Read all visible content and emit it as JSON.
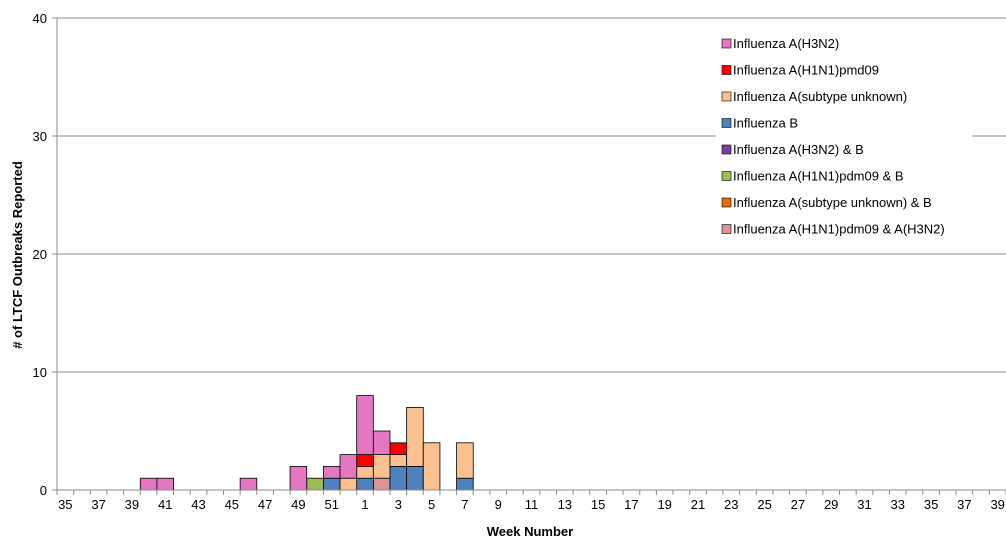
{
  "chart_data": {
    "type": "bar",
    "stacked": true,
    "xlabel": "Week Number",
    "ylabel": "# of LTCF Outbreaks Reported",
    "ylim": [
      0,
      40
    ],
    "yticks": [
      0,
      10,
      20,
      30,
      40
    ],
    "grid": true,
    "legend_position": "top-right",
    "categories": [
      "35",
      "36",
      "37",
      "38",
      "39",
      "40",
      "41",
      "42",
      "43",
      "44",
      "45",
      "46",
      "47",
      "48",
      "49",
      "50",
      "51",
      "52",
      "1",
      "2",
      "3",
      "4",
      "5",
      "6",
      "7",
      "8",
      "9",
      "10",
      "11",
      "12",
      "13",
      "14",
      "15",
      "16",
      "17",
      "18",
      "19",
      "20",
      "21",
      "22",
      "23",
      "24",
      "25",
      "26",
      "27",
      "28",
      "29",
      "30",
      "31",
      "32",
      "33",
      "34",
      "35",
      "36",
      "37",
      "38",
      "39"
    ],
    "tick_labels_shown": [
      "35",
      "37",
      "39",
      "41",
      "43",
      "45",
      "47",
      "49",
      "51",
      "1",
      "3",
      "5",
      "7",
      "9",
      "11",
      "13",
      "15",
      "17",
      "19",
      "21",
      "23",
      "25",
      "27",
      "29",
      "31",
      "33",
      "35",
      "37",
      "39"
    ],
    "series": [
      {
        "name": "Influenza A(H1N1)pdm09 & A(H3N2)",
        "color": "#d99694",
        "values": [
          0,
          0,
          0,
          0,
          0,
          0,
          0,
          0,
          0,
          0,
          0,
          0,
          0,
          0,
          0,
          0,
          0,
          0,
          0,
          1,
          0,
          0,
          0,
          0,
          0,
          0,
          0,
          0,
          0,
          0,
          0,
          0,
          0,
          0,
          0,
          0,
          0,
          0,
          0,
          0,
          0,
          0,
          0,
          0,
          0,
          0,
          0,
          0,
          0,
          0,
          0,
          0,
          0,
          0,
          0,
          0,
          0
        ]
      },
      {
        "name": "Influenza A(H1N1)pdm09 & B",
        "color": "#9bbb59",
        "values": [
          0,
          0,
          0,
          0,
          0,
          0,
          0,
          0,
          0,
          0,
          0,
          0,
          0,
          0,
          0,
          1,
          0,
          0,
          0,
          0,
          0,
          0,
          0,
          0,
          0,
          0,
          0,
          0,
          0,
          0,
          0,
          0,
          0,
          0,
          0,
          0,
          0,
          0,
          0,
          0,
          0,
          0,
          0,
          0,
          0,
          0,
          0,
          0,
          0,
          0,
          0,
          0,
          0,
          0,
          0,
          0,
          0
        ]
      },
      {
        "name": "Influenza A(subtype unknown) & B",
        "color": "#e46c0a",
        "values": [
          0,
          0,
          0,
          0,
          0,
          0,
          0,
          0,
          0,
          0,
          0,
          0,
          0,
          0,
          0,
          0,
          0,
          0,
          0,
          0,
          0,
          0,
          0,
          0,
          0,
          0,
          0,
          0,
          0,
          0,
          0,
          0,
          0,
          0,
          0,
          0,
          0,
          0,
          0,
          0,
          0,
          0,
          0,
          0,
          0,
          0,
          0,
          0,
          0,
          0,
          0,
          0,
          0,
          0,
          0,
          0,
          0
        ]
      },
      {
        "name": "Influenza A(H3N2) & B",
        "color": "#7f3f98",
        "values": [
          0,
          0,
          0,
          0,
          0,
          0,
          0,
          0,
          0,
          0,
          0,
          0,
          0,
          0,
          0,
          0,
          0,
          0,
          0,
          0,
          0,
          0,
          0,
          0,
          0,
          0,
          0,
          0,
          0,
          0,
          0,
          0,
          0,
          0,
          0,
          0,
          0,
          0,
          0,
          0,
          0,
          0,
          0,
          0,
          0,
          0,
          0,
          0,
          0,
          0,
          0,
          0,
          0,
          0,
          0,
          0,
          0
        ]
      },
      {
        "name": "Influenza B",
        "color": "#4f81bd",
        "values": [
          0,
          0,
          0,
          0,
          0,
          0,
          0,
          0,
          0,
          0,
          0,
          0,
          0,
          0,
          0,
          0,
          1,
          0,
          1,
          0,
          2,
          2,
          0,
          0,
          1,
          0,
          0,
          0,
          0,
          0,
          0,
          0,
          0,
          0,
          0,
          0,
          0,
          0,
          0,
          0,
          0,
          0,
          0,
          0,
          0,
          0,
          0,
          0,
          0,
          0,
          0,
          0,
          0,
          0,
          0,
          0,
          0
        ]
      },
      {
        "name": "Influenza A(subtype unknown)",
        "color": "#fac090",
        "values": [
          0,
          0,
          0,
          0,
          0,
          0,
          0,
          0,
          0,
          0,
          0,
          0,
          0,
          0,
          0,
          0,
          0,
          1,
          1,
          2,
          1,
          5,
          4,
          0,
          3,
          0,
          0,
          0,
          0,
          0,
          0,
          0,
          0,
          0,
          0,
          0,
          0,
          0,
          0,
          0,
          0,
          0,
          0,
          0,
          0,
          0,
          0,
          0,
          0,
          0,
          0,
          0,
          0,
          0,
          0,
          0,
          0
        ]
      },
      {
        "name": "Influenza A(H1N1)pmd09",
        "color": "#ff0000",
        "values": [
          0,
          0,
          0,
          0,
          0,
          0,
          0,
          0,
          0,
          0,
          0,
          0,
          0,
          0,
          0,
          0,
          0,
          0,
          1,
          0,
          1,
          0,
          0,
          0,
          0,
          0,
          0,
          0,
          0,
          0,
          0,
          0,
          0,
          0,
          0,
          0,
          0,
          0,
          0,
          0,
          0,
          0,
          0,
          0,
          0,
          0,
          0,
          0,
          0,
          0,
          0,
          0,
          0,
          0,
          0,
          0,
          0
        ]
      },
      {
        "name": "Influenza A(H3N2)",
        "color": "#e377c2",
        "values": [
          0,
          0,
          0,
          0,
          0,
          1,
          1,
          0,
          0,
          0,
          0,
          1,
          0,
          0,
          2,
          0,
          1,
          2,
          5,
          2,
          0,
          0,
          0,
          0,
          0,
          0,
          0,
          0,
          0,
          0,
          0,
          0,
          0,
          0,
          0,
          0,
          0,
          0,
          0,
          0,
          0,
          0,
          0,
          0,
          0,
          0,
          0,
          0,
          0,
          0,
          0,
          0,
          0,
          0,
          0,
          0,
          0
        ]
      }
    ],
    "legend_order": [
      "Influenza A(H3N2)",
      "Influenza A(H1N1)pmd09",
      "Influenza A(subtype unknown)",
      "Influenza B",
      "Influenza A(H3N2) & B",
      "Influenza A(H1N1)pdm09 & B",
      "Influenza A(subtype unknown) & B",
      "Influenza A(H1N1)pdm09 & A(H3N2)"
    ]
  }
}
